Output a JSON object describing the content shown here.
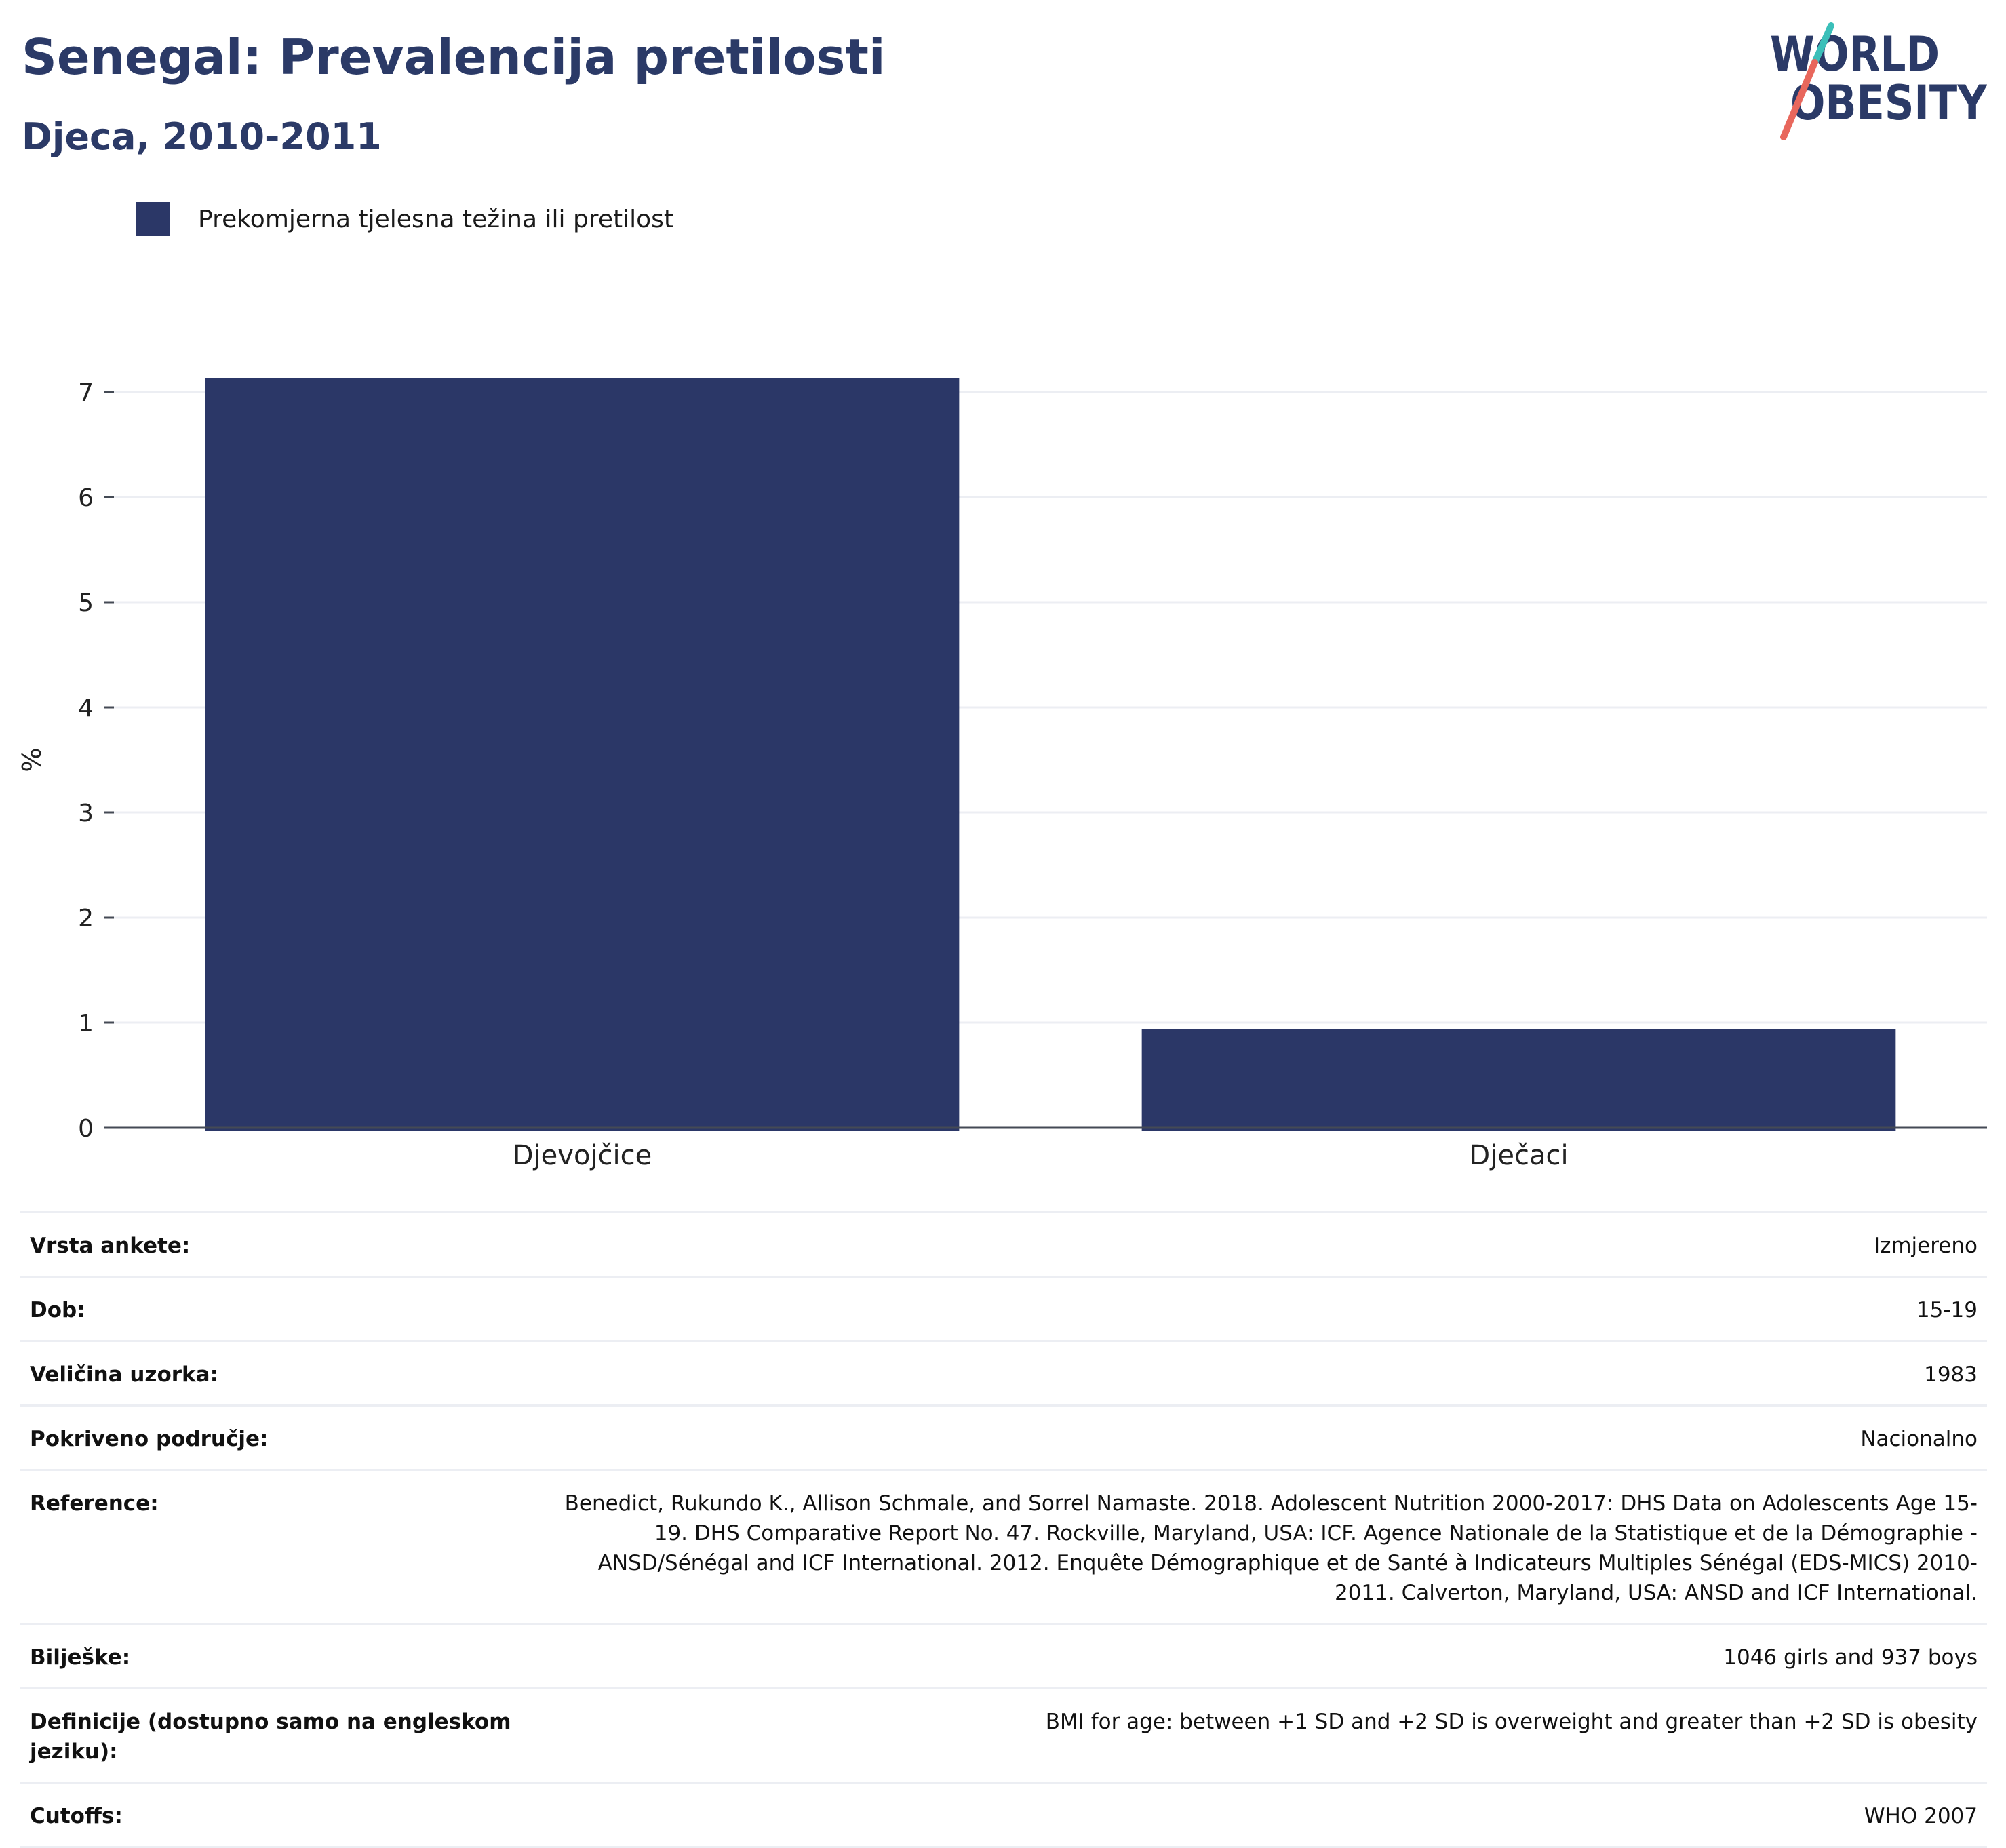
{
  "header": {
    "title": "Senegal: Prevalencija pretilosti",
    "subtitle": "Djeca, 2010-2011"
  },
  "logo": {
    "line1": "WORLD",
    "line2": "OBESITY",
    "colors": {
      "text": "#2b3a67",
      "slash_top": "#3bbfb9",
      "slash_bottom": "#e8675c"
    }
  },
  "legend": {
    "label": "Prekomjerna tjelesna težina ili pretilost",
    "color": "#2b3767"
  },
  "chart_data": {
    "type": "bar",
    "categories": [
      "Djevojčice",
      "Dječaci"
    ],
    "series": [
      {
        "name": "Prekomjerna tjelesna težina ili pretilost",
        "values": [
          7.13,
          0.94
        ],
        "color": "#2b3767"
      }
    ],
    "ylabel": "%",
    "ylim": [
      0,
      7.6
    ],
    "yticks": [
      0,
      1,
      2,
      3,
      4,
      5,
      6,
      7
    ],
    "grid": true,
    "legend_position": "top-left"
  },
  "info": {
    "rows": [
      {
        "label": "Vrsta ankete:",
        "value": "Izmjereno"
      },
      {
        "label": "Dob:",
        "value": "15-19"
      },
      {
        "label": "Veličina uzorka:",
        "value": "1983"
      },
      {
        "label": "Pokriveno područje:",
        "value": "Nacionalno"
      },
      {
        "label": "Reference:",
        "value": "Benedict, Rukundo K., Allison Schmale, and Sorrel Namaste. 2018. Adolescent Nutrition 2000-2017: DHS Data on Adolescents Age 15-19. DHS Comparative Report No. 47. Rockville, Maryland, USA: ICF. Agence Nationale de la Statistique et de la Démographie - ANSD/Sénégal and ICF International. 2012. Enquête Démographique et de Santé à Indicateurs Multiples Sénégal (EDS-MICS) 2010-2011. Calverton, Maryland, USA: ANSD and ICF International."
      },
      {
        "label": "Bilješke:",
        "value": "1046 girls and 937 boys"
      },
      {
        "label": "Definicije (dostupno samo na engleskom jeziku):",
        "value": "BMI for age: between +1 SD and +2 SD is overweight and greater than +2 SD is obesity"
      },
      {
        "label": "Cutoffs:",
        "value": "WHO 2007"
      }
    ]
  }
}
